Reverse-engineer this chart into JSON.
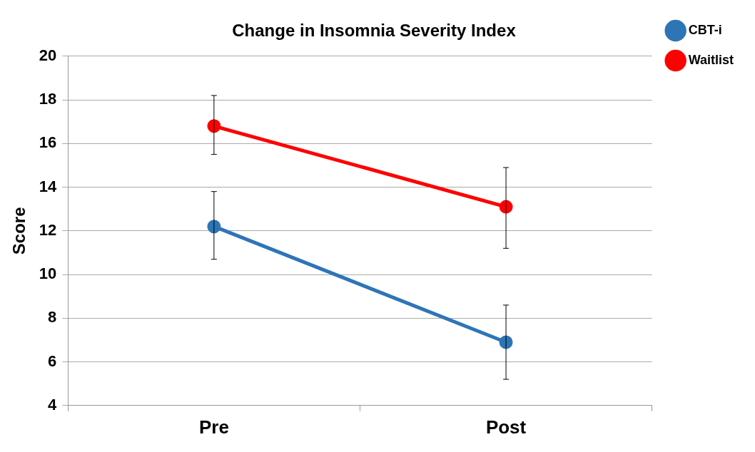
{
  "chart_data": {
    "type": "line",
    "title": "Change in Insomnia Severity Index",
    "ylabel": "Score",
    "categories": [
      "Pre",
      "Post"
    ],
    "series": [
      {
        "name": "CBT-i",
        "color": "#2e75b6",
        "values": [
          12.2,
          6.9
        ],
        "errors": [
          [
            10.7,
            13.8
          ],
          [
            5.2,
            8.6
          ]
        ]
      },
      {
        "name": "Waitlist",
        "color": "#ff0000",
        "values": [
          16.8,
          13.1
        ],
        "errors": [
          [
            15.5,
            18.2
          ],
          [
            11.2,
            14.9
          ]
        ]
      }
    ],
    "ylim": [
      4,
      20
    ],
    "yticks": [
      4,
      6,
      8,
      10,
      12,
      14,
      16,
      18,
      20
    ],
    "grid": "y",
    "legend": "right",
    "marker": "circle",
    "line_style": "solid"
  }
}
